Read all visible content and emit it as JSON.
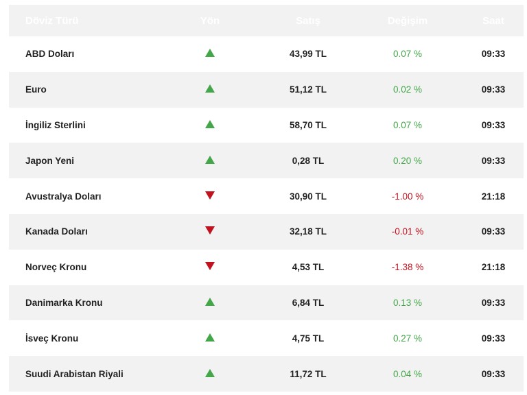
{
  "header": {
    "name": "Döviz Türü",
    "direction": "Yön",
    "sell": "Satış",
    "change": "Değişim",
    "time": "Saat"
  },
  "colors": {
    "header_bg": "#003a8c",
    "up": "#43a649",
    "down": "#c1121f"
  },
  "rows": [
    {
      "name": "ABD Doları",
      "direction": "up",
      "sell": "43,99 TL",
      "change": "0.07 %",
      "time": "09:33"
    },
    {
      "name": "Euro",
      "direction": "up",
      "sell": "51,12 TL",
      "change": "0.02 %",
      "time": "09:33"
    },
    {
      "name": "İngiliz Sterlini",
      "direction": "up",
      "sell": "58,70 TL",
      "change": "0.07 %",
      "time": "09:33"
    },
    {
      "name": "Japon Yeni",
      "direction": "up",
      "sell": "0,28 TL",
      "change": "0.20 %",
      "time": "09:33"
    },
    {
      "name": "Avustralya Doları",
      "direction": "down",
      "sell": "30,90 TL",
      "change": "-1.00 %",
      "time": "21:18"
    },
    {
      "name": "Kanada Doları",
      "direction": "down",
      "sell": "32,18 TL",
      "change": "-0.01 %",
      "time": "09:33"
    },
    {
      "name": "Norveç Kronu",
      "direction": "down",
      "sell": "4,53 TL",
      "change": "-1.38 %",
      "time": "21:18"
    },
    {
      "name": "Danimarka Kronu",
      "direction": "up",
      "sell": "6,84 TL",
      "change": "0.13 %",
      "time": "09:33"
    },
    {
      "name": "İsveç Kronu",
      "direction": "up",
      "sell": "4,75 TL",
      "change": "0.27 %",
      "time": "09:33"
    },
    {
      "name": "Suudi Arabistan Riyali",
      "direction": "up",
      "sell": "11,72 TL",
      "change": "0.04 %",
      "time": "09:33"
    }
  ]
}
